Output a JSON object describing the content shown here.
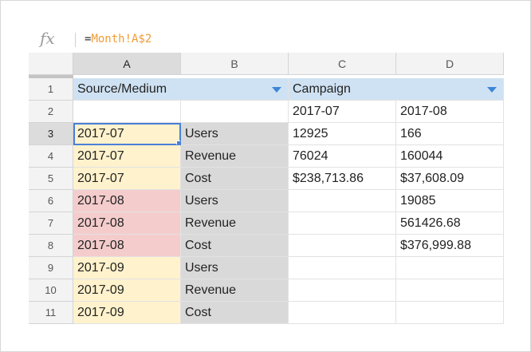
{
  "formula_bar": {
    "fx_label": "fx",
    "formula_prefix": "=",
    "formula_ref": "Month!A$2"
  },
  "columns": [
    "A",
    "B",
    "C",
    "D"
  ],
  "row_numbers": [
    "1",
    "2",
    "3",
    "4",
    "5",
    "6",
    "7",
    "8",
    "9",
    "10",
    "11"
  ],
  "row1": {
    "a": "Source/Medium",
    "c": "Campaign"
  },
  "row2": {
    "c": "2017-07",
    "d": "2017-08"
  },
  "rows": [
    {
      "a": "2017-07",
      "b": "Users",
      "c": "12925",
      "d": "166"
    },
    {
      "a": "2017-07",
      "b": "Revenue",
      "c": "76024",
      "d": "160044"
    },
    {
      "a": "2017-07",
      "b": "Cost",
      "c": "$238,713.86",
      "d": "$37,608.09"
    },
    {
      "a": "2017-08",
      "b": "Users",
      "c": "",
      "d": "19085"
    },
    {
      "a": "2017-08",
      "b": "Revenue",
      "c": "",
      "d": "561426.68"
    },
    {
      "a": "2017-08",
      "b": "Cost",
      "c": "",
      "d": "$376,999.88"
    },
    {
      "a": "2017-09",
      "b": "Users",
      "c": "",
      "d": ""
    },
    {
      "a": "2017-09",
      "b": "Revenue",
      "c": "",
      "d": ""
    },
    {
      "a": "2017-09",
      "b": "Cost",
      "c": "",
      "d": ""
    }
  ],
  "colors": {
    "header_blue": "#cfe2f3",
    "month_yellow": "#fff2cc",
    "month_pink": "#f4cccc",
    "label_grey": "#d9d9d9",
    "selection_blue": "#4a7fd8",
    "formula_ref_orange": "#f29b34"
  }
}
